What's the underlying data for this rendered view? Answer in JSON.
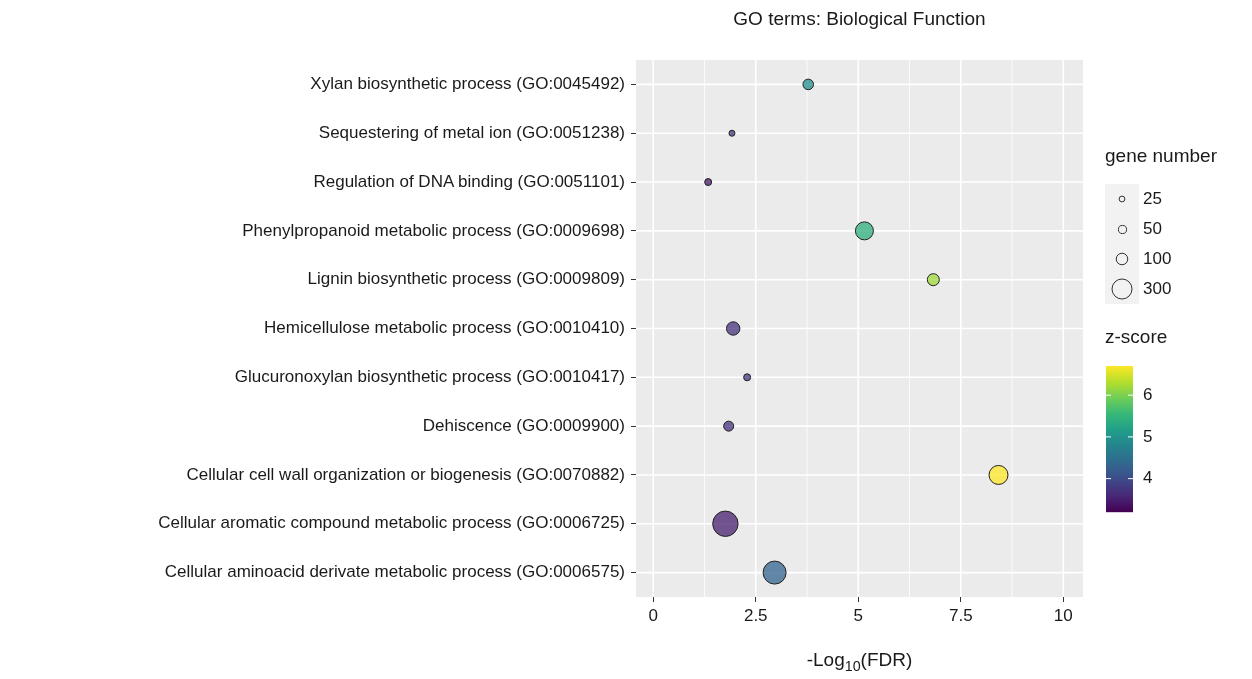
{
  "chart_data": {
    "type": "bubble",
    "title": "GO terms: Biological Function",
    "xlabel": "-Log$_{10}$(FDR)",
    "orientation": "horizontal",
    "categories": [
      "Xylan biosynthetic process (GO:0045492)",
      "Sequestering of metal ion (GO:0051238)",
      "Regulation of DNA binding (GO:0051101)",
      "Phenylpropanoid metabolic process (GO:0009698)",
      "Lignin biosynthetic process (GO:0009809)",
      "Hemicellulose metabolic process (GO:0010410)",
      "Glucuronoxylan biosynthetic process (GO:0010417)",
      "Dehiscence (GO:0009900)",
      "Cellular cell wall organization or biogenesis (GO:0070882)",
      "Cellular aromatic compound metabolic process (GO:0006725)",
      "Cellular aminoacid derivate metabolic process (GO:0006575)"
    ],
    "values": [
      3.78,
      1.92,
      1.34,
      5.15,
      6.83,
      1.95,
      2.29,
      1.84,
      8.42,
      1.76,
      2.96
    ],
    "sizes": [
      84,
      27,
      37,
      243,
      108,
      135,
      37,
      75,
      271,
      484,
      397
    ],
    "cvalues": [
      4.9,
      3.7,
      3.4,
      5.4,
      6.2,
      3.7,
      3.8,
      3.7,
      6.7,
      3.5,
      4.3
    ],
    "size_legend": [
      25,
      50,
      100,
      300
    ],
    "legend_title": "gene number",
    "clabel": "z-score",
    "clim": [
      3.2,
      6.7
    ],
    "cticks": [
      4,
      5,
      6
    ],
    "xlim": [
      -0.42,
      10.48
    ],
    "xticks": [
      0,
      2.5,
      5,
      7.5,
      10
    ],
    "grid": true
  }
}
